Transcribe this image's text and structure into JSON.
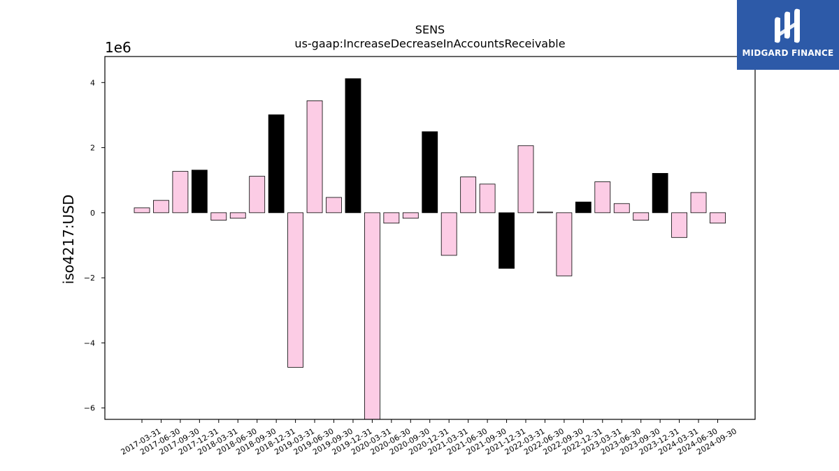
{
  "logo": {
    "text": "MIDGARD FINANCE",
    "background": "#2d5aa8"
  },
  "chart_data": {
    "type": "bar",
    "title": "SENS",
    "subtitle": "us-gaap:IncreaseDecreaseInAccountsReceivable",
    "ylabel": "iso4217:USD",
    "xlabel": "",
    "y_offset_label": "1e6",
    "y_scale": 1000000,
    "ylim": [
      -6.35,
      4.8
    ],
    "yticks": [
      -6,
      -4,
      -2,
      0,
      2,
      4
    ],
    "ytick_labels": [
      "−6",
      "−4",
      "−2",
      "0",
      "2",
      "4"
    ],
    "grid": false,
    "colors": {
      "quarter": "#fccce5",
      "year_end": "#000000",
      "edge": "#000000"
    },
    "categories": [
      "2017-03-31",
      "2017-06-30",
      "2017-09-30",
      "2017-12-31",
      "2018-03-31",
      "2018-06-30",
      "2018-09-30",
      "2018-12-31",
      "2019-03-31",
      "2019-06-30",
      "2019-09-30",
      "2019-12-31",
      "2020-03-31",
      "2020-06-30",
      "2020-09-30",
      "2020-12-31",
      "2021-03-31",
      "2021-06-30",
      "2021-09-30",
      "2021-12-31",
      "2022-03-31",
      "2022-06-30",
      "2022-09-30",
      "2022-12-31",
      "2023-03-31",
      "2023-06-30",
      "2023-09-30",
      "2023-12-31",
      "2024-03-31",
      "2024-06-30",
      "2024-09-30"
    ],
    "values": [
      0.15,
      0.38,
      1.27,
      1.31,
      -0.23,
      -0.17,
      1.12,
      3.01,
      -4.75,
      3.44,
      0.47,
      4.12,
      -6.4,
      -0.32,
      -0.17,
      2.49,
      -1.31,
      1.1,
      0.88,
      -1.71,
      2.06,
      0.02,
      -1.94,
      0.33,
      0.95,
      0.28,
      -0.23,
      1.21,
      -0.76,
      0.62,
      -0.32
    ],
    "year_end": [
      false,
      false,
      false,
      true,
      false,
      false,
      false,
      true,
      false,
      false,
      false,
      true,
      false,
      false,
      false,
      true,
      false,
      false,
      false,
      true,
      false,
      false,
      false,
      true,
      false,
      false,
      false,
      true,
      false,
      false,
      false
    ]
  }
}
